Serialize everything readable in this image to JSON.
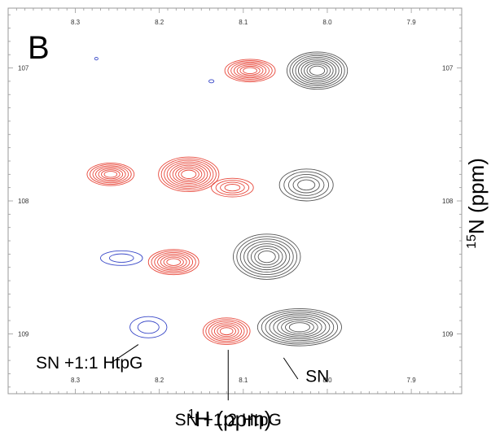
{
  "chart_data": {
    "type": "contour",
    "panel_label": "B",
    "xlabel_sup": "1",
    "xlabel_rest": "H (ppm)",
    "ylabel_sup": "15",
    "ylabel_rest": "N (ppm)",
    "x_axis": {
      "reversed": true,
      "xlim": [
        8.38,
        7.84
      ],
      "ticks": [
        8.3,
        8.2,
        8.1,
        8.0,
        7.9
      ],
      "tick_labels": [
        "8.3",
        "8.2",
        "8.1",
        "8.0",
        "7.9"
      ]
    },
    "y_axis": {
      "reversed": true,
      "ylim": [
        106.55,
        109.45
      ],
      "ticks": [
        107,
        108,
        109
      ],
      "tick_labels": [
        "107",
        "108",
        "109"
      ]
    },
    "grid": false,
    "series": [
      {
        "name": "SN",
        "color": "#555555",
        "peaks": [
          {
            "x": 8.012,
            "y": 107.02,
            "rx": 0.036,
            "ry": 0.14,
            "levels": 9
          },
          {
            "x": 8.025,
            "y": 107.88,
            "rx": 0.032,
            "ry": 0.12,
            "levels": 5
          },
          {
            "x": 8.072,
            "y": 108.42,
            "rx": 0.04,
            "ry": 0.17,
            "levels": 8
          },
          {
            "x": 8.033,
            "y": 108.95,
            "rx": 0.05,
            "ry": 0.14,
            "levels": 9
          }
        ]
      },
      {
        "name": "SN +1:2 HtpG",
        "color": "#e8483b",
        "peaks": [
          {
            "x": 8.092,
            "y": 107.02,
            "rx": 0.03,
            "ry": 0.085,
            "levels": 7
          },
          {
            "x": 8.165,
            "y": 107.8,
            "rx": 0.036,
            "ry": 0.13,
            "levels": 9
          },
          {
            "x": 8.113,
            "y": 107.9,
            "rx": 0.025,
            "ry": 0.07,
            "levels": 4
          },
          {
            "x": 8.183,
            "y": 108.46,
            "rx": 0.03,
            "ry": 0.095,
            "levels": 7
          },
          {
            "x": 8.12,
            "y": 108.98,
            "rx": 0.028,
            "ry": 0.1,
            "levels": 7
          },
          {
            "x": 8.258,
            "y": 107.8,
            "rx": 0.028,
            "ry": 0.085,
            "levels": 7
          }
        ]
      },
      {
        "name": "SN +1:1 HtpG",
        "color": "#3a49c8",
        "peaks": [
          {
            "x": 8.245,
            "y": 108.43,
            "rx": 0.025,
            "ry": 0.055,
            "levels": 2
          },
          {
            "x": 8.213,
            "y": 108.95,
            "rx": 0.022,
            "ry": 0.08,
            "levels": 2
          },
          {
            "x": 8.275,
            "y": 106.93,
            "rx": 0.002,
            "ry": 0.01,
            "levels": 1
          },
          {
            "x": 8.138,
            "y": 107.1,
            "rx": 0.003,
            "ry": 0.012,
            "levels": 1
          }
        ]
      }
    ],
    "annotations": [
      {
        "text": "SN +1:1 HtpG",
        "x": 8.347,
        "y": 109.26,
        "line_from": [
          8.258,
          109.22
        ],
        "line_to": [
          8.225,
          109.08
        ]
      },
      {
        "text": "SN +1:2 HtpG",
        "x": 8.118,
        "y": 109.69,
        "line_from": [
          8.118,
          109.5
        ],
        "line_to": [
          8.118,
          109.12
        ]
      },
      {
        "text": "SN",
        "x": 8.026,
        "y": 109.36,
        "line_from": [
          8.035,
          109.34
        ],
        "line_to": [
          8.052,
          109.18
        ]
      }
    ]
  }
}
